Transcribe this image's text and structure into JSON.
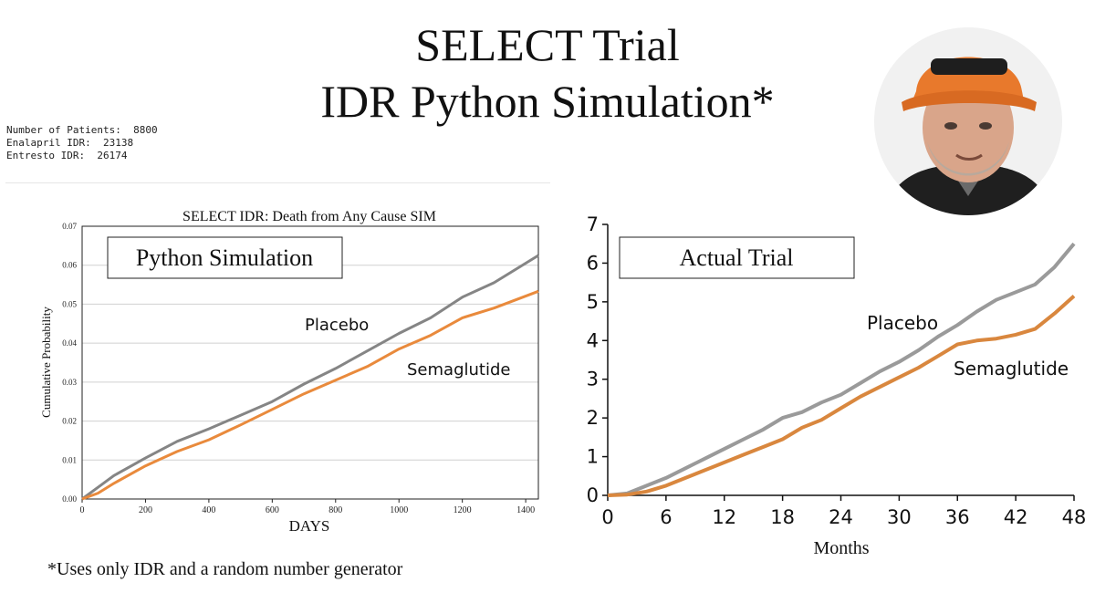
{
  "header": {
    "title_line1": "SELECT Trial",
    "title_line2": "IDR Python Simulation*"
  },
  "stats": {
    "patients": "Number of Patients:  8800",
    "enalapril": "Enalapril IDR:  23138",
    "entresto": "Entresto IDR:  26174"
  },
  "footnote": "*Uses only IDR and a random number generator",
  "colors": {
    "placebo": "#858585",
    "semaglutide": "#e98a3c",
    "actual_placebo": "#9a9a9a",
    "actual_semaglutide": "#d9873e"
  },
  "chart_data": [
    {
      "type": "line",
      "title": "SELECT IDR: Death from Any Cause SIM",
      "xlabel": "DAYS",
      "ylabel": "Cumulative Probability",
      "xlim": [
        0,
        1440
      ],
      "ylim": [
        0,
        0.07
      ],
      "xticks": [
        0,
        200,
        400,
        600,
        800,
        1000,
        1200,
        1400
      ],
      "yticks": [
        0,
        0.01,
        0.02,
        0.03,
        0.04,
        0.05,
        0.06,
        0.07
      ],
      "ytick_labels": [
        "0.00",
        "0.01",
        "0.02",
        "0.03",
        "0.04",
        "0.05",
        "0.06",
        "0.07"
      ],
      "grid": true,
      "boxed_label": "Python Simulation",
      "series": [
        {
          "name": "Placebo",
          "x": [
            0,
            50,
            100,
            200,
            300,
            400,
            500,
            600,
            700,
            800,
            900,
            1000,
            1100,
            1200,
            1300,
            1440
          ],
          "y": [
            0,
            0.003,
            0.006,
            0.0105,
            0.0148,
            0.018,
            0.0215,
            0.025,
            0.0295,
            0.0335,
            0.038,
            0.0425,
            0.0465,
            0.0518,
            0.0555,
            0.0625
          ]
        },
        {
          "name": "Semaglutide",
          "x": [
            0,
            50,
            100,
            200,
            300,
            400,
            500,
            600,
            700,
            800,
            900,
            1000,
            1100,
            1200,
            1300,
            1440
          ],
          "y": [
            0,
            0.0015,
            0.004,
            0.0085,
            0.0122,
            0.0152,
            0.019,
            0.023,
            0.027,
            0.0305,
            0.034,
            0.0385,
            0.042,
            0.0465,
            0.049,
            0.0533
          ]
        }
      ]
    },
    {
      "type": "line",
      "xlabel": "Months",
      "ylabel": "",
      "xlim": [
        0,
        48
      ],
      "ylim": [
        0,
        7
      ],
      "xticks": [
        0,
        6,
        12,
        18,
        24,
        30,
        36,
        42,
        48
      ],
      "yticks": [
        0,
        1,
        2,
        3,
        4,
        5,
        6,
        7
      ],
      "grid": false,
      "boxed_label": "Actual Trial",
      "series": [
        {
          "name": "Placebo",
          "x": [
            0,
            2,
            4,
            6,
            8,
            10,
            12,
            14,
            16,
            18,
            20,
            22,
            24,
            26,
            28,
            30,
            32,
            34,
            36,
            38,
            40,
            42,
            44,
            46,
            48
          ],
          "y": [
            0,
            0.05,
            0.25,
            0.45,
            0.7,
            0.95,
            1.2,
            1.45,
            1.7,
            2.0,
            2.15,
            2.4,
            2.6,
            2.9,
            3.2,
            3.45,
            3.75,
            4.1,
            4.4,
            4.75,
            5.05,
            5.25,
            5.45,
            5.9,
            6.5
          ]
        },
        {
          "name": "Semaglutide",
          "x": [
            0,
            2,
            4,
            6,
            8,
            10,
            12,
            14,
            16,
            18,
            20,
            22,
            24,
            26,
            28,
            30,
            32,
            34,
            36,
            38,
            40,
            42,
            44,
            46,
            48
          ],
          "y": [
            0,
            0.02,
            0.1,
            0.25,
            0.45,
            0.65,
            0.85,
            1.05,
            1.25,
            1.45,
            1.75,
            1.95,
            2.25,
            2.55,
            2.8,
            3.05,
            3.3,
            3.6,
            3.9,
            4.0,
            4.05,
            4.15,
            4.3,
            4.7,
            5.15
          ]
        }
      ]
    }
  ]
}
